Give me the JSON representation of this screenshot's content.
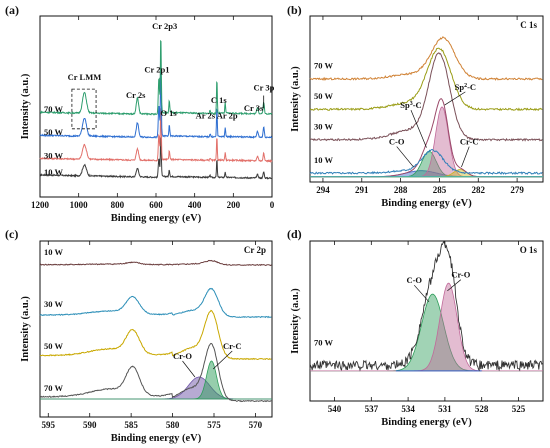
{
  "chart_data": [
    {
      "panel": "(a)",
      "type": "line",
      "xlabel": "Binding energy (eV)",
      "ylabel": "Intensity (a.u.)",
      "xlim": [
        1200,
        0
      ],
      "xticks": [
        1200,
        1000,
        800,
        600,
        400,
        200,
        0
      ],
      "series": [
        {
          "name": "10 W",
          "color": "#3b3b3b",
          "offset": 0.0,
          "amp": 0.45
        },
        {
          "name": "30 W",
          "color": "#e2716b",
          "offset": 0.65,
          "amp": 0.6
        },
        {
          "name": "50 W",
          "color": "#2f6fd1",
          "offset": 1.55,
          "amp": 0.75
        },
        {
          "name": "70 W",
          "color": "#2e9e6e",
          "offset": 2.45,
          "amp": 0.85
        }
      ],
      "peaks": [
        {
          "label": "Cr LMM",
          "x": 970,
          "h": 0.95,
          "w": 10
        },
        {
          "label": "Cr 2s",
          "x": 696,
          "h": 0.75,
          "w": 6
        },
        {
          "label": "Cr 2p1",
          "x": 585,
          "h": 1.7,
          "w": 3
        },
        {
          "label": "Cr 2p3",
          "x": 575,
          "h": 3.6,
          "w": 2.5
        },
        {
          "label": "O 1s",
          "x": 531,
          "h": 0.55,
          "w": 2.5
        },
        {
          "label": "Ar 2s",
          "x": 320,
          "h": 0.15,
          "w": 2.5
        },
        {
          "label": "C 1s",
          "x": 285,
          "h": 1.6,
          "w": 2
        },
        {
          "label": "Ar 2p",
          "x": 242,
          "h": 0.5,
          "w": 2
        },
        {
          "label": "Cr 3s",
          "x": 75,
          "h": 0.3,
          "w": 4
        },
        {
          "label": "Cr 3p",
          "x": 43,
          "h": 0.55,
          "w": 3
        }
      ]
    },
    {
      "panel": "(b)",
      "element": "C 1s",
      "type": "line",
      "xlabel": "Binding energy (eV)",
      "ylabel": "Intensity (a.u.)",
      "xlim": [
        295,
        277
      ],
      "xticks": [
        294,
        291,
        288,
        285,
        282,
        279
      ],
      "series": [
        {
          "name": "10 W",
          "color": "#2f7fb8",
          "offset": 0.0,
          "peak": {
            "x": 285.5,
            "h": 0.35,
            "w": 0.8
          }
        },
        {
          "name": "30 W",
          "color": "#7a5058",
          "offset": 0.55,
          "peak": {
            "x": 285.0,
            "h": 1.35,
            "w": 0.8
          }
        },
        {
          "name": "50 W",
          "color": "#9a9d16",
          "offset": 1.05,
          "peak": {
            "x": 285.0,
            "h": 0.95,
            "w": 0.9
          }
        },
        {
          "name": "70 W",
          "color": "#d08235",
          "offset": 1.55,
          "peak": {
            "x": 284.7,
            "h": 0.65,
            "w": 0.9
          }
        }
      ],
      "fit_components": [
        {
          "label": "C-O",
          "x": 286.4,
          "h": 0.1,
          "w": 1.2,
          "color": "#3a63c8"
        },
        {
          "label": "Sp3-C",
          "x": 285.8,
          "h": 0.42,
          "w": 0.55,
          "color": "#2e9e5a"
        },
        {
          "label": "Sp2-C",
          "x": 284.8,
          "h": 1.15,
          "w": 0.5,
          "color": "#c06a9a"
        },
        {
          "label": "Cr-C",
          "x": 283.4,
          "h": 0.12,
          "w": 0.5,
          "color": "#c9b51e"
        }
      ]
    },
    {
      "panel": "(c)",
      "element": "Cr 2p",
      "type": "line",
      "xlabel": "Binding energy (eV)",
      "ylabel": "Intensity (a.u.)",
      "xlim": [
        596,
        568
      ],
      "xticks": [
        595,
        590,
        585,
        580,
        575,
        570
      ],
      "series": [
        {
          "name": "10 W",
          "color": "#6b3e3e",
          "offset": 3.4,
          "p2p3": 0.1,
          "p2p1": 0.05
        },
        {
          "name": "30 W",
          "color": "#2d8fb8",
          "offset": 2.1,
          "p2p3": 0.65,
          "p2p1": 0.4
        },
        {
          "name": "50 W",
          "color": "#c9a800",
          "offset": 1.05,
          "p2p3": 1.1,
          "p2p1": 0.55
        },
        {
          "name": "70 W",
          "color": "#555555",
          "offset": 0.0,
          "p2p3": 1.3,
          "p2p1": 0.65
        }
      ],
      "fit_components": [
        {
          "label": "Cr-O",
          "x": 576.8,
          "h": 0.55,
          "w": 1.3,
          "color": "#7055a8"
        },
        {
          "label": "Cr-C",
          "x": 575.3,
          "h": 0.95,
          "w": 0.6,
          "color": "#2e9e5a"
        }
      ]
    },
    {
      "panel": "(d)",
      "element": "O 1s",
      "type": "line",
      "xlabel": "Binding energy (eV)",
      "ylabel": "Intensity (a.u.)",
      "xlim": [
        542,
        523
      ],
      "xticks": [
        540,
        537,
        534,
        531,
        528,
        525
      ],
      "series": [
        {
          "name": "70 W",
          "color": "#333333",
          "offset": 0.0
        }
      ],
      "fit_components": [
        {
          "label": "C-O",
          "x": 532.0,
          "h": 0.7,
          "w": 0.9,
          "color": "#2e9e5a"
        },
        {
          "label": "Cr-O",
          "x": 530.7,
          "h": 0.8,
          "w": 0.7,
          "color": "#c06a9a"
        }
      ]
    }
  ]
}
